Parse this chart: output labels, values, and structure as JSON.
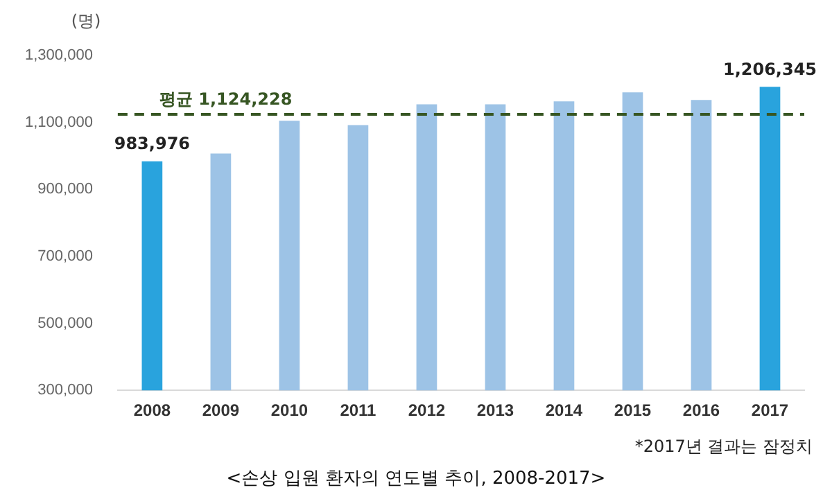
{
  "chart_data": {
    "type": "bar",
    "ylabel": "(명)",
    "categories": [
      "2008",
      "2009",
      "2010",
      "2011",
      "2012",
      "2013",
      "2014",
      "2015",
      "2016",
      "2017"
    ],
    "values": [
      983976,
      1007000,
      1105000,
      1092000,
      1154000,
      1154000,
      1163000,
      1190000,
      1167000,
      1206345
    ],
    "colors": [
      "#29a3dd",
      "#9dc3e6",
      "#9dc3e6",
      "#9dc3e6",
      "#9dc3e6",
      "#9dc3e6",
      "#9dc3e6",
      "#9dc3e6",
      "#9dc3e6",
      "#29a3dd"
    ],
    "value_labels": [
      "983,976",
      null,
      null,
      null,
      null,
      null,
      null,
      null,
      null,
      "1,206,345"
    ],
    "ylim": [
      300000,
      1300000
    ],
    "yticks": [
      {
        "value": 300000,
        "label": "300,000"
      },
      {
        "value": 500000,
        "label": "500,000"
      },
      {
        "value": 700000,
        "label": "700,000"
      },
      {
        "value": 900000,
        "label": "900,000"
      },
      {
        "value": 1100000,
        "label": "1,100,000"
      },
      {
        "value": 1300000,
        "label": "1,300,000"
      }
    ],
    "grid": false,
    "legend": false,
    "ref_lines": [
      {
        "axis": "y",
        "value": 1124228,
        "label": "평균 1,124,228",
        "color": "#375623",
        "line_style": "dashed"
      }
    ],
    "annotations": [
      "*2017년 결과는 잠정치",
      "<손상 입원 환자의 연도별 추이, 2008-2017>"
    ]
  }
}
